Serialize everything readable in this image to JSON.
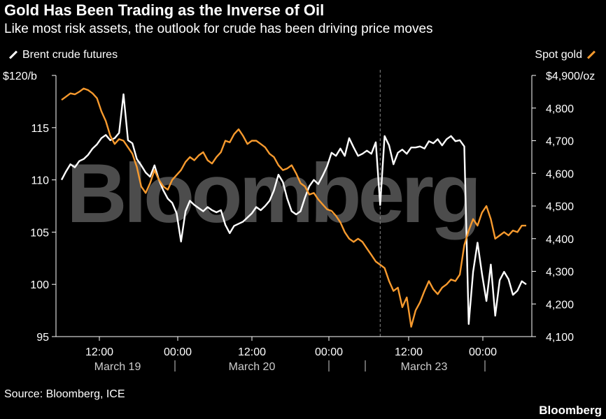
{
  "header": {
    "title": "Gold Has Been Trading as the Inverse of Oil",
    "subtitle": "Like most risk assets, the outlook for crude has been driving price moves"
  },
  "legend": {
    "left": "Brent crude futures",
    "right": "Spot gold"
  },
  "footer": {
    "source": "Source: Bloomberg, ICE",
    "brand": "Bloomberg"
  },
  "watermark": "Bloomberg",
  "colors": {
    "oil": "#ffffff",
    "gold": "#f79a2e",
    "background": "#000000"
  },
  "chart_data": {
    "type": "line",
    "title": "Gold Has Been Trading as the Inverse of Oil",
    "subtitle": "Like most risk assets, the outlook for crude has been driving price moves",
    "x_ticks": [
      "12:00",
      "00:00",
      "12:00",
      "00:00",
      "12:00",
      "00:00"
    ],
    "x_groups": [
      "March 19",
      "March 20",
      "March 23"
    ],
    "left_axis": {
      "range": [
        95,
        120
      ],
      "ticks": [
        "$120/b",
        "115",
        "110",
        "105",
        "100",
        "95"
      ]
    },
    "right_axis": {
      "range": [
        4100,
        4900
      ],
      "ticks": [
        "$4,900/oz",
        "4,800",
        "4,700",
        "4,600",
        "4,500",
        "4,400",
        "4,300",
        "4,200",
        "4,100"
      ]
    },
    "x_range": [
      0,
      105
    ],
    "weekend_break_x": 72,
    "series": [
      {
        "name": "Brent crude futures",
        "axis": "left",
        "x": [
          0,
          1,
          2,
          3,
          4,
          5,
          6,
          7,
          8,
          9,
          10,
          11,
          12,
          13,
          14,
          15,
          16,
          17,
          18,
          19,
          20,
          21,
          22,
          23,
          24,
          25,
          26,
          27,
          28,
          29,
          30,
          31,
          32,
          33,
          34,
          35,
          36,
          37,
          38,
          39,
          40,
          41,
          42,
          43,
          44,
          45,
          46,
          47,
          48,
          49,
          50,
          51,
          52,
          53,
          54,
          55,
          56,
          57,
          58,
          59,
          60,
          61,
          62,
          63,
          64,
          65,
          66,
          67,
          68,
          69,
          70,
          71,
          72,
          73,
          74,
          75,
          76,
          77,
          78,
          79,
          80,
          81,
          82,
          83,
          84,
          85,
          86,
          87,
          88,
          89,
          90,
          91,
          92,
          93,
          94,
          95,
          96,
          97,
          98,
          99,
          100,
          101,
          102,
          103,
          104,
          105
        ],
        "y": [
          110.0,
          110.8,
          111.5,
          111.2,
          111.8,
          112.0,
          112.4,
          113.0,
          113.4,
          114.0,
          114.3,
          113.8,
          114.0,
          114.5,
          118.2,
          113.8,
          113.5,
          112.0,
          111.4,
          110.7,
          110.3,
          111.4,
          110.0,
          109.0,
          108.2,
          107.8,
          106.8,
          104.1,
          107.0,
          108.0,
          107.6,
          107.3,
          107.0,
          107.4,
          107.1,
          106.9,
          107.1,
          105.7,
          104.9,
          105.6,
          105.8,
          106.0,
          106.4,
          106.8,
          107.4,
          107.1,
          107.5,
          108.0,
          109.0,
          110.5,
          109.8,
          108.2,
          107.0,
          106.7,
          107.0,
          108.3,
          109.4,
          110.0,
          109.6,
          110.4,
          111.3,
          112.6,
          112.3,
          113.0,
          112.3,
          114.0,
          113.1,
          112.3,
          112.5,
          112.8,
          112.5,
          113.6,
          107.6,
          114.2,
          113.3,
          111.5,
          112.6,
          112.9,
          112.5,
          113.1,
          113.1,
          113.2,
          113.0,
          113.7,
          113.5,
          113.9,
          113.3,
          113.9,
          114.2,
          113.7,
          113.8,
          113.2,
          96.2,
          101.2,
          104.0,
          101.0,
          98.4,
          101.9,
          97.0,
          100.4,
          101.2,
          100.5,
          99.0,
          99.4,
          100.3,
          100.0
        ]
      },
      {
        "name": "Spot gold",
        "axis": "right",
        "x": [
          0,
          1,
          2,
          3,
          4,
          5,
          6,
          7,
          8,
          9,
          10,
          11,
          12,
          13,
          14,
          15,
          16,
          17,
          18,
          19,
          20,
          21,
          22,
          23,
          24,
          25,
          26,
          27,
          28,
          29,
          30,
          31,
          32,
          33,
          34,
          35,
          36,
          37,
          38,
          39,
          40,
          41,
          42,
          43,
          44,
          45,
          46,
          47,
          48,
          49,
          50,
          51,
          52,
          53,
          54,
          55,
          56,
          57,
          58,
          59,
          60,
          61,
          62,
          63,
          64,
          65,
          66,
          67,
          68,
          69,
          70,
          71,
          72,
          73,
          74,
          75,
          76,
          77,
          78,
          79,
          80,
          81,
          82,
          83,
          84,
          85,
          86,
          87,
          88,
          89,
          90,
          91,
          92,
          93,
          94,
          95,
          96,
          97,
          98,
          99,
          100,
          101,
          102,
          103,
          104,
          105
        ],
        "y": [
          4825,
          4835,
          4845,
          4842,
          4850,
          4860,
          4855,
          4845,
          4830,
          4790,
          4760,
          4715,
          4690,
          4705,
          4700,
          4680,
          4660,
          4620,
          4560,
          4540,
          4570,
          4610,
          4580,
          4560,
          4550,
          4580,
          4595,
          4610,
          4635,
          4650,
          4640,
          4655,
          4665,
          4640,
          4630,
          4650,
          4665,
          4700,
          4695,
          4720,
          4735,
          4715,
          4690,
          4700,
          4700,
          4690,
          4680,
          4660,
          4650,
          4625,
          4610,
          4615,
          4625,
          4600,
          4570,
          4560,
          4535,
          4540,
          4520,
          4505,
          4490,
          4485,
          4470,
          4450,
          4420,
          4400,
          4390,
          4400,
          4390,
          4370,
          4350,
          4330,
          4320,
          4310,
          4270,
          4240,
          4250,
          4190,
          4220,
          4130,
          4180,
          4205,
          4240,
          4270,
          4245,
          4230,
          4250,
          4260,
          4275,
          4270,
          4290,
          4380,
          4425,
          4460,
          4440,
          4480,
          4500,
          4460,
          4400,
          4410,
          4420,
          4410,
          4425,
          4420,
          4440,
          4440
        ]
      }
    ]
  }
}
